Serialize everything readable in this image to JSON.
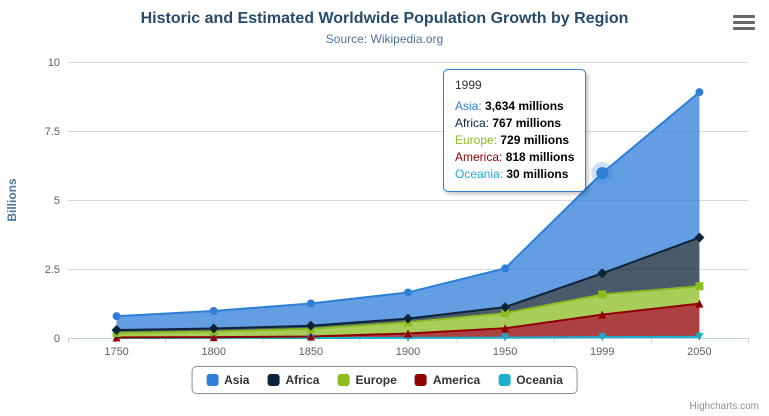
{
  "header": {
    "title": "Historic and Estimated Worldwide Population Growth by Region",
    "subtitle": "Source: Wikipedia.org"
  },
  "credits": "Highcharts.com",
  "menu_icon": "hamburger-icon",
  "chart_data": {
    "type": "area",
    "stacking": "normal",
    "title": "Historic and Estimated Worldwide Population Growth by Region",
    "subtitle": "Source: Wikipedia.org",
    "xlabel": "",
    "ylabel": "Billions",
    "ylim": [
      0,
      10
    ],
    "yticks": [
      0,
      2.5,
      5,
      7.5,
      10
    ],
    "ytick_labels": [
      "0",
      "2.5",
      "5",
      "7.5",
      "10"
    ],
    "categories": [
      "1750",
      "1800",
      "1850",
      "1900",
      "1950",
      "1999",
      "2050"
    ],
    "unit": "millions",
    "grid": true,
    "legend_position": "bottom",
    "series": [
      {
        "name": "Asia",
        "color": "#2f7ed8",
        "marker": "circle",
        "values": [
          502,
          635,
          809,
          947,
          1402,
          3634,
          5268
        ]
      },
      {
        "name": "Africa",
        "color": "#0d233a",
        "marker": "diamond",
        "values": [
          106,
          107,
          111,
          133,
          221,
          767,
          1766
        ]
      },
      {
        "name": "Europe",
        "color": "#8bbc21",
        "marker": "square",
        "values": [
          163,
          203,
          276,
          408,
          547,
          729,
          628
        ]
      },
      {
        "name": "America",
        "color": "#910000",
        "marker": "triangle",
        "values": [
          18,
          31,
          54,
          156,
          339,
          818,
          1201
        ]
      },
      {
        "name": "Oceania",
        "color": "#1aadce",
        "marker": "triangle-down",
        "values": [
          2,
          2,
          2,
          6,
          13,
          30,
          46
        ]
      }
    ]
  },
  "tooltip": {
    "header": "1999",
    "hover_index": 5,
    "hover_series": "Asia",
    "border_color": "#2f7ed8",
    "rows": [
      {
        "name": "Asia",
        "value": "3,634 millions",
        "color": "#2f7ed8"
      },
      {
        "name": "Africa",
        "value": "767 millions",
        "color": "#0d233a"
      },
      {
        "name": "Europe",
        "value": "729 millions",
        "color": "#8bbc21"
      },
      {
        "name": "America",
        "value": "818 millions",
        "color": "#910000"
      },
      {
        "name": "Oceania",
        "value": "30 millions",
        "color": "#1aadce"
      }
    ]
  }
}
